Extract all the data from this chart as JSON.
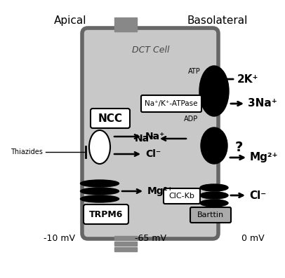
{
  "title_apical": "Apical",
  "title_basolateral": "Basolateral",
  "cell_label": "DCT Cell",
  "white": "#ffffff",
  "black": "#000000",
  "cell_color": "#c8c8c8",
  "wall_color": "#666666",
  "stripe_color": "#888888",
  "voltage_apical": "-10 mV",
  "voltage_cell": "-65 mV",
  "voltage_baso": "0 mV",
  "ions": {
    "NCC_Na": "Na⁺",
    "NCC_Cl": "Cl⁻",
    "TRPM6_Mg": "Mg²⁺",
    "ATPase_2K": "2K⁺",
    "ATPase_3Na": "3Na⁺",
    "Na_in": "Na⁺",
    "Mg_out": "Mg²⁺",
    "Cl_out": "Cl⁻"
  },
  "labels": {
    "NCC": "NCC",
    "TRPM6": "TRPM6",
    "NaKATPase": "Na⁺/K⁺-ATPase",
    "CIC_Kb": "ClC-Kb",
    "Barttin": "Barttin",
    "ATP": "ATP",
    "ADP": "ADP",
    "Thiazides": "Thiazides",
    "question": "?"
  }
}
